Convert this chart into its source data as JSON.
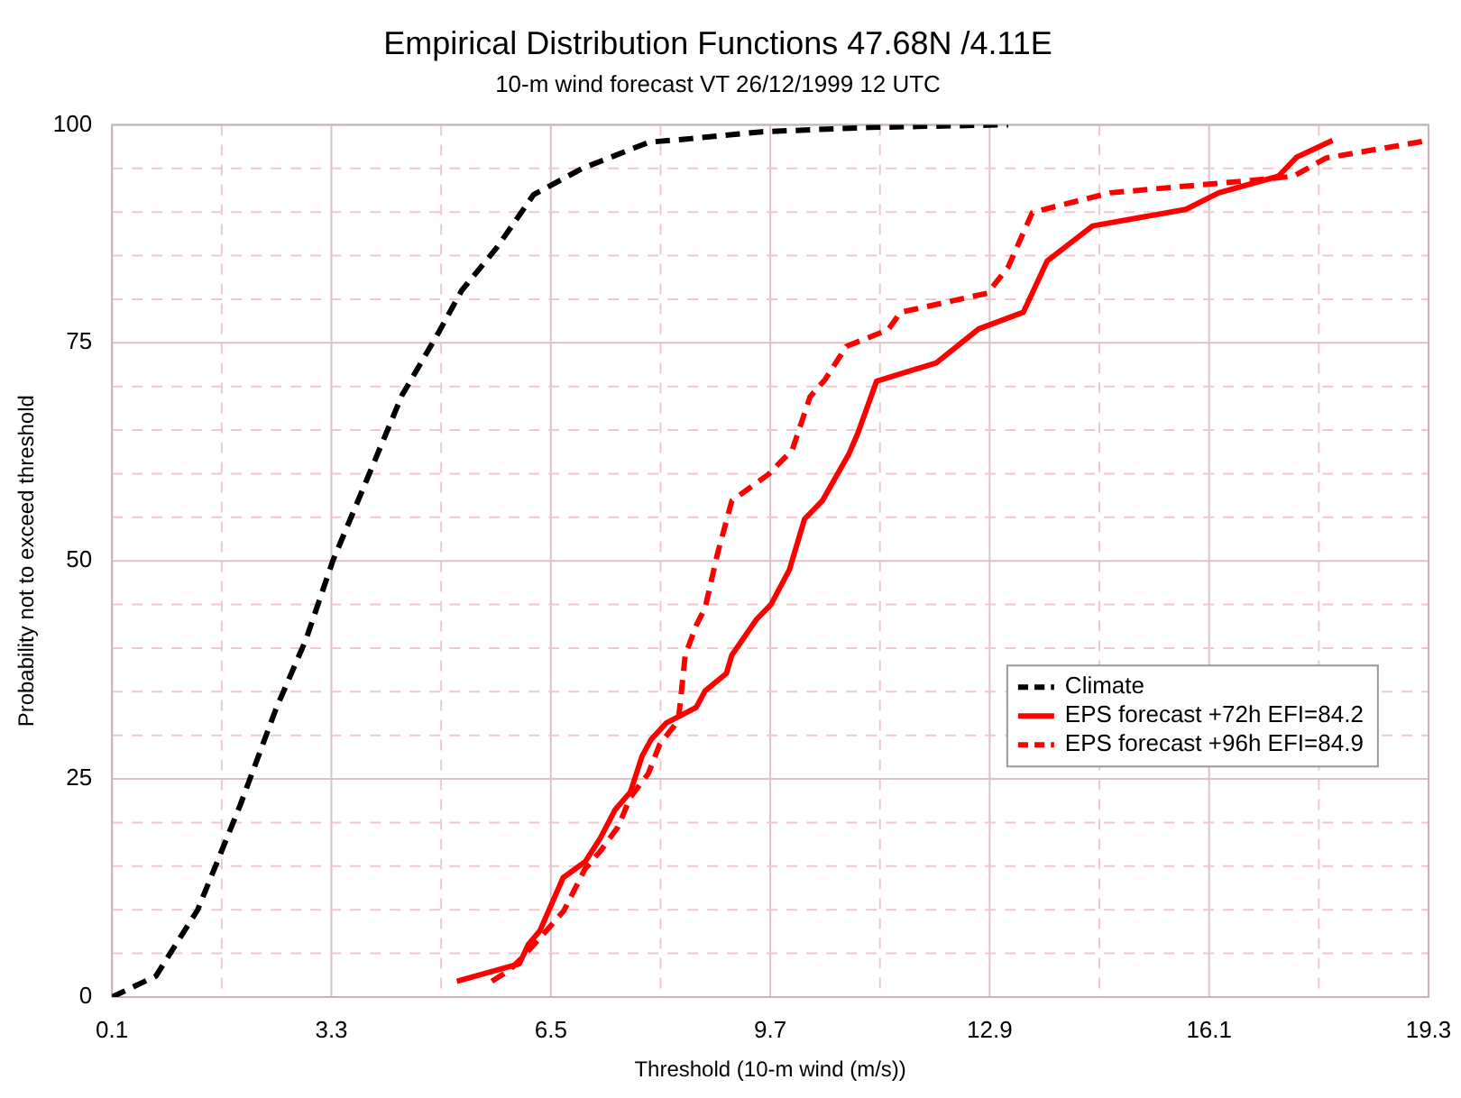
{
  "chart_data": {
    "type": "line",
    "title": "Empirical Distribution Functions 47.68N /4.11E",
    "subtitle": "10-m wind forecast VT 26/12/1999 12 UTC",
    "xlabel": "Threshold (10-m wind (m/s))",
    "ylabel": "Probability not to exceed threshold",
    "xlim": [
      0.1,
      19.3
    ],
    "xticks": [
      0.1,
      {
        "value": 1.7,
        "label": null
      },
      3.3,
      {
        "value": 4.9,
        "label": null
      },
      6.5,
      {
        "value": 8.1,
        "label": null
      },
      9.7,
      {
        "value": 11.3,
        "label": null
      },
      12.9,
      {
        "value": 14.5,
        "label": null
      },
      16.1,
      {
        "value": 17.7,
        "label": null
      },
      19.3
    ],
    "ylim": [
      0,
      100
    ],
    "yticks": [
      0,
      {
        "value": 5,
        "label": null
      },
      {
        "value": 10,
        "label": null
      },
      {
        "value": 15,
        "label": null
      },
      {
        "value": 20,
        "label": null
      },
      25,
      {
        "value": 30,
        "label": null
      },
      {
        "value": 35,
        "label": null
      },
      {
        "value": 40,
        "label": null
      },
      {
        "value": 45,
        "label": null
      },
      50,
      {
        "value": 55,
        "label": null
      },
      {
        "value": 60,
        "label": null
      },
      {
        "value": 65,
        "label": null
      },
      {
        "value": 70,
        "label": null
      },
      75,
      {
        "value": 80,
        "label": null
      },
      {
        "value": 85,
        "label": null
      },
      {
        "value": 90,
        "label": null
      },
      {
        "value": 95,
        "label": null
      },
      100
    ],
    "grid": true,
    "legend": "right",
    "marker": "none",
    "series": [
      {
        "name": "Climate",
        "color": "#000000",
        "line_style": "dashed",
        "x": [
          0.1,
          0.74,
          1.35,
          1.97,
          2.49,
          2.93,
          3.32,
          3.8,
          4.33,
          4.85,
          5.2,
          5.72,
          6.25,
          6.96,
          7.93,
          8.53,
          9.58,
          11.16,
          13.17
        ],
        "values": [
          0,
          2.4,
          10,
          22,
          33,
          41,
          50,
          59,
          69,
          76,
          81,
          86,
          92,
          95,
          98,
          98.4,
          99.2,
          99.7,
          100
        ]
      },
      {
        "name": "EPS forecast +72h EFI=84.2",
        "color": "#ff0000",
        "line_style": "solid",
        "x": [
          5.13,
          6.04,
          6.17,
          6.34,
          6.68,
          7.0,
          7.22,
          7.44,
          7.66,
          7.83,
          7.96,
          8.18,
          8.62,
          8.75,
          9.06,
          9.14,
          9.5,
          9.71,
          9.98,
          10.15,
          10.2,
          10.46,
          10.85,
          10.98,
          11.25,
          12.12,
          12.74,
          13.39,
          13.74,
          14.4,
          15.76,
          16.24,
          17.11,
          17.38,
          17.9
        ],
        "values": [
          1.8,
          3.8,
          6,
          7.6,
          13.7,
          15.5,
          18.2,
          21.5,
          23.5,
          27.6,
          29.5,
          31.4,
          33.2,
          35.1,
          37.1,
          39.2,
          43.3,
          45,
          49,
          53.5,
          54.8,
          56.9,
          62.3,
          64.7,
          70.6,
          72.7,
          76.6,
          78.5,
          84.4,
          88.4,
          90.3,
          92.2,
          94.1,
          96.3,
          98.2
        ]
      },
      {
        "name": "EPS forecast +96h EFI=84.9",
        "color": "#ff0000",
        "line_style": "dashed",
        "x": [
          5.64,
          5.9,
          6.08,
          6.39,
          6.69,
          7.0,
          7.22,
          7.48,
          7.66,
          7.92,
          8.09,
          8.36,
          8.46,
          8.62,
          8.75,
          8.93,
          9.14,
          9.67,
          10.02,
          10.28,
          10.5,
          10.81,
          11.42,
          11.6,
          12.87,
          13.17,
          13.52,
          13.79,
          14.66,
          16.68,
          17.33,
          17.81,
          19.3
        ],
        "values": [
          1.8,
          3.1,
          4.5,
          7.2,
          9.9,
          14.7,
          16.7,
          19.5,
          22.9,
          25.6,
          29,
          31.7,
          39.2,
          42.6,
          44.6,
          50.8,
          56.9,
          59.9,
          62.7,
          68.8,
          70.8,
          74.6,
          76.5,
          78.5,
          80.7,
          83.7,
          89.9,
          90.5,
          92.2,
          93.6,
          94.1,
          96.2,
          98.2
        ]
      }
    ]
  }
}
